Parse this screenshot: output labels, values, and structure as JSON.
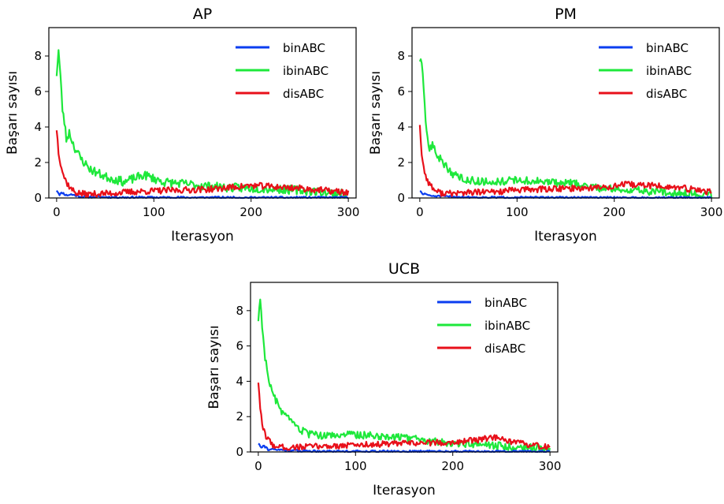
{
  "chart_data": [
    {
      "type": "line",
      "title": "AP",
      "xlabel": "Iterasyon",
      "ylabel": "Başarı sayısı",
      "xlim": [
        -8,
        308
      ],
      "ylim": [
        0,
        9.6
      ],
      "xticks": [
        "0",
        "100",
        "200",
        "300"
      ],
      "yticks": [
        "0",
        "2",
        "4",
        "6",
        "8"
      ],
      "legend_position": "top-right",
      "series": [
        {
          "name": "binABC",
          "color": "#0a3df0",
          "anchors": [
            [
              0,
              0.45
            ],
            [
              3,
              0.2
            ],
            [
              6,
              0.3
            ],
            [
              10,
              0.15
            ],
            [
              15,
              0.2
            ],
            [
              25,
              0.08
            ],
            [
              40,
              0.06
            ],
            [
              60,
              0.04
            ],
            [
              100,
              0.03
            ],
            [
              200,
              0.02
            ],
            [
              300,
              0.02
            ]
          ],
          "noise": 0.06,
          "seed": 11
        },
        {
          "name": "ibinABC",
          "color": "#1ee83b",
          "anchors": [
            [
              0,
              7.0
            ],
            [
              2,
              8.3
            ],
            [
              4,
              6.8
            ],
            [
              6,
              5.0
            ],
            [
              8,
              4.3
            ],
            [
              10,
              3.3
            ],
            [
              13,
              3.7
            ],
            [
              18,
              2.9
            ],
            [
              25,
              2.2
            ],
            [
              35,
              1.6
            ],
            [
              50,
              1.2
            ],
            [
              70,
              0.9
            ],
            [
              90,
              1.3
            ],
            [
              110,
              0.9
            ],
            [
              130,
              0.8
            ],
            [
              150,
              0.7
            ],
            [
              170,
              0.6
            ],
            [
              200,
              0.55
            ],
            [
              230,
              0.5
            ],
            [
              260,
              0.4
            ],
            [
              280,
              0.3
            ],
            [
              300,
              0.2
            ]
          ],
          "noise": 0.25,
          "seed": 23
        },
        {
          "name": "disABC",
          "color": "#e8101a",
          "anchors": [
            [
              0,
              3.9
            ],
            [
              2,
              2.6
            ],
            [
              4,
              2.0
            ],
            [
              7,
              1.3
            ],
            [
              10,
              0.9
            ],
            [
              15,
              0.5
            ],
            [
              20,
              0.3
            ],
            [
              30,
              0.2
            ],
            [
              50,
              0.25
            ],
            [
              80,
              0.35
            ],
            [
              100,
              0.4
            ],
            [
              130,
              0.45
            ],
            [
              160,
              0.5
            ],
            [
              180,
              0.6
            ],
            [
              200,
              0.7
            ],
            [
              220,
              0.65
            ],
            [
              250,
              0.55
            ],
            [
              280,
              0.4
            ],
            [
              300,
              0.3
            ]
          ],
          "noise": 0.18,
          "seed": 37
        }
      ]
    },
    {
      "type": "line",
      "title": "PM",
      "xlabel": "Iterasyon",
      "ylabel": "Başarı sayısı",
      "xlim": [
        -8,
        308
      ],
      "ylim": [
        0,
        9.6
      ],
      "xticks": [
        "0",
        "100",
        "200",
        "300"
      ],
      "yticks": [
        "0",
        "2",
        "4",
        "6",
        "8"
      ],
      "legend_position": "top-right",
      "series": [
        {
          "name": "binABC",
          "color": "#0a3df0",
          "anchors": [
            [
              0,
              0.4
            ],
            [
              3,
              0.2
            ],
            [
              6,
              0.25
            ],
            [
              10,
              0.12
            ],
            [
              20,
              0.1
            ],
            [
              40,
              0.06
            ],
            [
              60,
              0.04
            ],
            [
              100,
              0.03
            ],
            [
              200,
              0.02
            ],
            [
              300,
              0.02
            ]
          ],
          "noise": 0.05,
          "seed": 51
        },
        {
          "name": "ibinABC",
          "color": "#1ee83b",
          "anchors": [
            [
              0,
              7.8
            ],
            [
              2,
              7.4
            ],
            [
              4,
              6.2
            ],
            [
              6,
              4.3
            ],
            [
              8,
              3.4
            ],
            [
              10,
              2.7
            ],
            [
              13,
              3.0
            ],
            [
              18,
              2.4
            ],
            [
              25,
              1.9
            ],
            [
              35,
              1.3
            ],
            [
              50,
              1.0
            ],
            [
              70,
              0.9
            ],
            [
              100,
              1.0
            ],
            [
              130,
              0.9
            ],
            [
              160,
              0.8
            ],
            [
              180,
              0.6
            ],
            [
              200,
              0.5
            ],
            [
              230,
              0.4
            ],
            [
              260,
              0.3
            ],
            [
              300,
              0.2
            ]
          ],
          "noise": 0.22,
          "seed": 63
        },
        {
          "name": "disABC",
          "color": "#e8101a",
          "anchors": [
            [
              0,
              4.2
            ],
            [
              2,
              2.4
            ],
            [
              4,
              1.7
            ],
            [
              7,
              1.1
            ],
            [
              10,
              0.8
            ],
            [
              15,
              0.45
            ],
            [
              20,
              0.3
            ],
            [
              30,
              0.25
            ],
            [
              50,
              0.3
            ],
            [
              80,
              0.35
            ],
            [
              100,
              0.45
            ],
            [
              130,
              0.5
            ],
            [
              160,
              0.55
            ],
            [
              190,
              0.6
            ],
            [
              210,
              0.75
            ],
            [
              240,
              0.7
            ],
            [
              270,
              0.55
            ],
            [
              300,
              0.35
            ]
          ],
          "noise": 0.18,
          "seed": 77
        }
      ]
    },
    {
      "type": "line",
      "title": "UCB",
      "xlabel": "Iterasyon",
      "ylabel": "Başarı sayısı",
      "xlim": [
        -8,
        308
      ],
      "ylim": [
        0,
        9.6
      ],
      "xticks": [
        "0",
        "100",
        "200",
        "300"
      ],
      "yticks": [
        "0",
        "2",
        "4",
        "6",
        "8"
      ],
      "legend_position": "top-right",
      "series": [
        {
          "name": "binABC",
          "color": "#0a3df0",
          "anchors": [
            [
              0,
              0.5
            ],
            [
              3,
              0.3
            ],
            [
              6,
              0.35
            ],
            [
              10,
              0.15
            ],
            [
              20,
              0.12
            ],
            [
              40,
              0.07
            ],
            [
              60,
              0.05
            ],
            [
              100,
              0.04
            ],
            [
              200,
              0.03
            ],
            [
              300,
              0.02
            ]
          ],
          "noise": 0.06,
          "seed": 91
        },
        {
          "name": "ibinABC",
          "color": "#1ee83b",
          "anchors": [
            [
              0,
              7.5
            ],
            [
              2,
              8.7
            ],
            [
              4,
              7.2
            ],
            [
              6,
              5.8
            ],
            [
              8,
              5.0
            ],
            [
              10,
              4.3
            ],
            [
              13,
              3.6
            ],
            [
              18,
              2.9
            ],
            [
              25,
              2.2
            ],
            [
              35,
              1.6
            ],
            [
              50,
              1.0
            ],
            [
              70,
              0.9
            ],
            [
              90,
              1.0
            ],
            [
              110,
              0.95
            ],
            [
              130,
              0.9
            ],
            [
              150,
              0.8
            ],
            [
              170,
              0.65
            ],
            [
              200,
              0.5
            ],
            [
              230,
              0.4
            ],
            [
              260,
              0.3
            ],
            [
              300,
              0.2
            ]
          ],
          "noise": 0.22,
          "seed": 103
        },
        {
          "name": "disABC",
          "color": "#e8101a",
          "anchors": [
            [
              0,
              4.0
            ],
            [
              2,
              2.3
            ],
            [
              4,
              1.6
            ],
            [
              7,
              1.0
            ],
            [
              10,
              0.7
            ],
            [
              15,
              0.4
            ],
            [
              20,
              0.3
            ],
            [
              30,
              0.25
            ],
            [
              50,
              0.3
            ],
            [
              80,
              0.35
            ],
            [
              100,
              0.4
            ],
            [
              130,
              0.45
            ],
            [
              160,
              0.5
            ],
            [
              200,
              0.55
            ],
            [
              230,
              0.7
            ],
            [
              240,
              0.85
            ],
            [
              260,
              0.55
            ],
            [
              280,
              0.4
            ],
            [
              300,
              0.25
            ]
          ],
          "noise": 0.17,
          "seed": 117
        }
      ]
    }
  ]
}
